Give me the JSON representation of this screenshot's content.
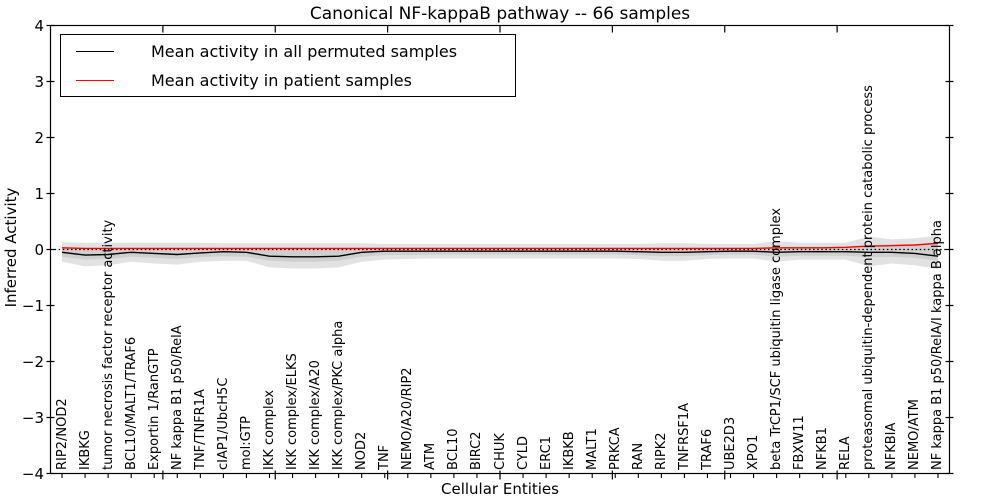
{
  "chart_data": {
    "type": "line",
    "title": "Canonical NF-kappaB pathway -- 66 samples",
    "xlabel": "Cellular Entities",
    "ylabel": "Inferred Activity",
    "ylim": [
      -4,
      4
    ],
    "yticks": [
      {
        "value": 4,
        "label": "4"
      },
      {
        "value": 3,
        "label": "3"
      },
      {
        "value": 2,
        "label": "2"
      },
      {
        "value": 1,
        "label": "1"
      },
      {
        "value": 0,
        "label": "0"
      },
      {
        "value": -1,
        "label": "−1"
      },
      {
        "value": -2,
        "label": "−2"
      },
      {
        "value": -3,
        "label": "−3"
      },
      {
        "value": -4,
        "label": "−4"
      }
    ],
    "grid": false,
    "legend_position": "upper-left",
    "zero_line": {
      "value": 0,
      "style": "dotted",
      "color": "#000000"
    },
    "categories": [
      "RIP2/NOD2",
      "IKBKG",
      "tumor necrosis factor receptor activity",
      "BCL10/MALT1/TRAF6",
      "Exportin 1/RanGTP",
      "NF kappa B1 p50/RelA",
      "TNF/TNFR1A",
      "cIAP1/UbcH5C",
      "mol:GTP",
      "IKK complex",
      "IKK complex/ELKS",
      "IKK complex/A20",
      "IKK complex/PKC alpha",
      "NOD2",
      "TNF",
      "NEMO/A20/RIP2",
      "ATM",
      "BCL10",
      "BIRC2",
      "CHUK",
      "CYLD",
      "ERC1",
      "IKBKB",
      "MALT1",
      "PRKCA",
      "RAN",
      "RIPK2",
      "TNFRSF1A",
      "TRAF6",
      "UBE2D3",
      "XPO1",
      "beta TrCP1/SCF ubiquitin ligase complex",
      "FBXW11",
      "NFKB1",
      "RELA",
      "proteasomal ubiquitin-dependent protein catabolic process",
      "NFKBIA",
      "NEMO/ATM",
      "NF kappa B1 p50/RelA/I kappa B alpha"
    ],
    "series": [
      {
        "name": "Mean activity in all permuted samples",
        "color": "#000000",
        "values": [
          -0.05,
          -0.1,
          -0.09,
          -0.05,
          -0.07,
          -0.09,
          -0.06,
          -0.04,
          -0.05,
          -0.12,
          -0.13,
          -0.13,
          -0.12,
          -0.05,
          -0.03,
          -0.03,
          -0.03,
          -0.03,
          -0.03,
          -0.03,
          -0.03,
          -0.03,
          -0.03,
          -0.03,
          -0.03,
          -0.04,
          -0.05,
          -0.05,
          -0.04,
          -0.03,
          -0.03,
          -0.05,
          -0.04,
          -0.04,
          -0.04,
          -0.05,
          -0.05,
          -0.07,
          -0.12
        ]
      },
      {
        "name": "Mean activity in patient samples",
        "color": "#ff0000",
        "values": [
          0.03,
          0.02,
          0.02,
          0.02,
          0.02,
          0.02,
          0.02,
          0.02,
          0.02,
          0.02,
          0.02,
          0.02,
          0.02,
          0.02,
          0.02,
          0.02,
          0.02,
          0.02,
          0.02,
          0.02,
          0.02,
          0.02,
          0.02,
          0.02,
          0.02,
          0.02,
          0.02,
          0.02,
          0.02,
          0.02,
          0.02,
          0.03,
          0.03,
          0.03,
          0.04,
          0.06,
          0.07,
          0.08,
          0.11
        ]
      }
    ],
    "band": {
      "name": "permuted-activity-envelope",
      "color": "#e2e2e2",
      "upper": [
        0.13,
        0.12,
        0.12,
        0.12,
        0.12,
        0.12,
        0.12,
        0.11,
        0.11,
        0.11,
        0.11,
        0.11,
        0.11,
        0.11,
        0.1,
        0.1,
        0.1,
        0.1,
        0.1,
        0.1,
        0.1,
        0.1,
        0.1,
        0.1,
        0.1,
        0.1,
        0.11,
        0.11,
        0.1,
        0.1,
        0.1,
        0.15,
        0.12,
        0.12,
        0.12,
        0.23,
        0.18,
        0.2,
        0.25
      ],
      "lower": [
        -0.22,
        -0.3,
        -0.28,
        -0.22,
        -0.25,
        -0.27,
        -0.22,
        -0.2,
        -0.2,
        -0.32,
        -0.34,
        -0.34,
        -0.32,
        -0.22,
        -0.18,
        -0.17,
        -0.16,
        -0.16,
        -0.16,
        -0.16,
        -0.16,
        -0.16,
        -0.16,
        -0.16,
        -0.16,
        -0.17,
        -0.2,
        -0.2,
        -0.17,
        -0.16,
        -0.16,
        -0.22,
        -0.18,
        -0.18,
        -0.18,
        -0.3,
        -0.25,
        -0.28,
        -0.35
      ]
    },
    "inner_band": {
      "name": "permuted-activity-inner-envelope",
      "color": "#cfcfcf",
      "lower": [
        -0.13,
        -0.18,
        -0.17,
        -0.13,
        -0.15,
        -0.17,
        -0.14,
        -0.12,
        -0.13,
        -0.2,
        -0.22,
        -0.22,
        -0.2,
        -0.13,
        -0.1,
        -0.1,
        -0.09,
        -0.09,
        -0.09,
        -0.09,
        -0.09,
        -0.09,
        -0.09,
        -0.09,
        -0.09,
        -0.1,
        -0.12,
        -0.12,
        -0.1,
        -0.09,
        -0.09,
        -0.13,
        -0.11,
        -0.11,
        -0.11,
        -0.14,
        -0.13,
        -0.15,
        -0.2
      ]
    }
  }
}
